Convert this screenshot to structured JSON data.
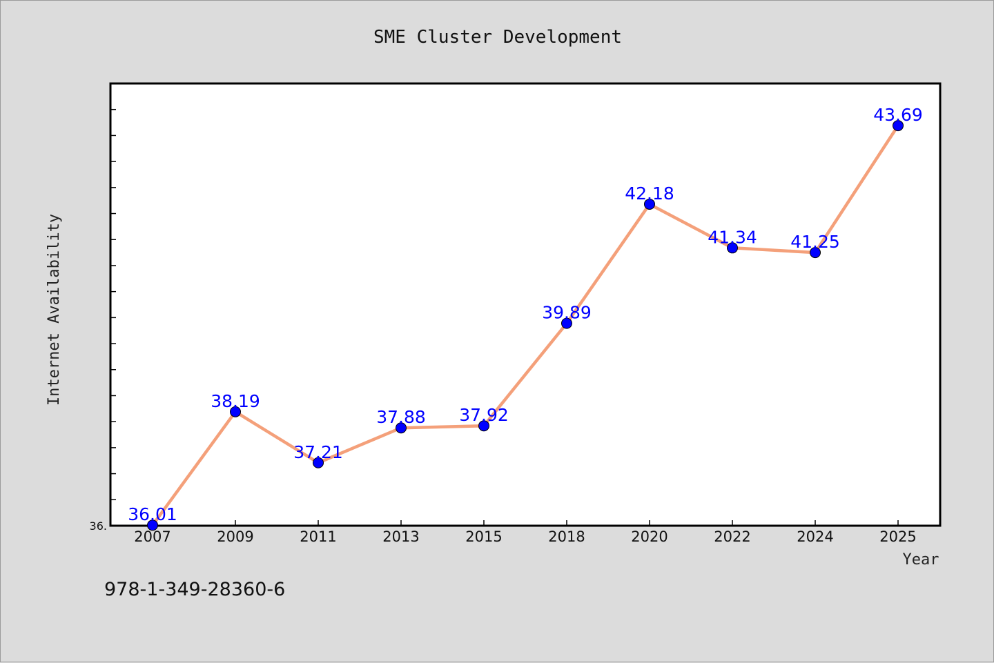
{
  "chart_data": {
    "type": "line",
    "title": "SME Cluster Development",
    "xlabel": "Year",
    "ylabel": "Internet Availability",
    "categories": [
      "2007",
      "2009",
      "2011",
      "2013",
      "2015",
      "2018",
      "2020",
      "2022",
      "2024",
      "2025"
    ],
    "values": [
      36.01,
      38.19,
      37.21,
      37.88,
      37.92,
      39.89,
      42.18,
      41.34,
      41.25,
      43.69
    ],
    "value_labels": [
      "36.01",
      "38.19",
      "37.21",
      "37.88",
      "37.92",
      "39.89",
      "42.18",
      "41.34",
      "41.25",
      "43.69"
    ],
    "ylim": [
      36.0,
      44.5
    ],
    "ytick_label": "36.",
    "grid": false,
    "line_color": "#f4a07a",
    "marker_color": "#0000ff",
    "label_color": "#0000ff"
  },
  "footer": {
    "isbn": "978-1-349-28360-6"
  }
}
